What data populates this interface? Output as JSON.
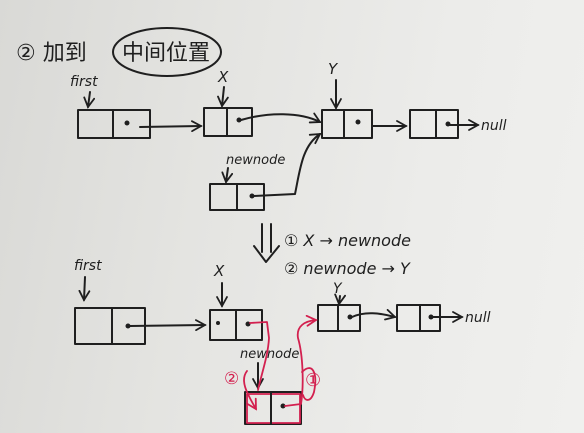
{
  "title": {
    "prefix": "② 加到",
    "circled": "中间位置"
  },
  "top": {
    "first_label": "first",
    "x_label": "X",
    "y_label": "Y",
    "null_label": "null",
    "newnode_label": "newnode"
  },
  "steps": {
    "step1": "① X → newnode",
    "step2": "② newnode → Y"
  },
  "bottom": {
    "first_label": "first",
    "x_label": "X",
    "y_label": "Y",
    "null_label": "null",
    "newnode_label": "newnode",
    "marker_step2": "②",
    "marker_step1": "①"
  },
  "colors": {
    "ink": "#1f1f1f",
    "red_ink": "#d3204f",
    "paper": "#e6e6e3"
  }
}
